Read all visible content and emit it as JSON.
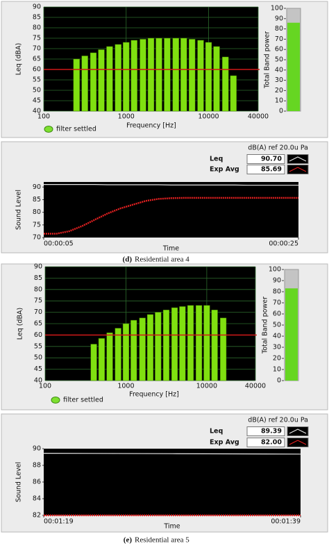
{
  "chart_data": [
    {
      "type": "bar",
      "xlabel": "Frequency [Hz]",
      "ylabel": "Leq (dBA)",
      "status": "filter settled",
      "x": [
        250,
        315,
        400,
        500,
        630,
        800,
        1000,
        1250,
        1600,
        2000,
        2500,
        3150,
        4000,
        5000,
        6300,
        8000,
        10000,
        12500,
        16000,
        20000
      ],
      "values": [
        65,
        66.5,
        68,
        69.5,
        71,
        72,
        73,
        74,
        74.5,
        75,
        75,
        75,
        75,
        75,
        74.5,
        74,
        73,
        71,
        66,
        57
      ],
      "color": "#80e010",
      "xscale": "log",
      "xlim": [
        100,
        40000
      ],
      "xticks": [
        100,
        1000,
        10000,
        40000
      ],
      "ylim": [
        40,
        90
      ],
      "yticks": [
        40,
        45,
        50,
        55,
        60,
        65,
        70,
        75,
        80,
        85,
        90
      ],
      "grid": true,
      "reference_line": 60,
      "reference_color": "#d01818"
    },
    {
      "type": "gauge",
      "ylabel": "Total Band power",
      "value": 86,
      "color": "#66d622",
      "ylim": [
        0,
        100
      ],
      "yticks": [
        0,
        10,
        20,
        30,
        40,
        50,
        60,
        70,
        80,
        90,
        100
      ]
    },
    {
      "type": "line",
      "header": "dB(A) ref 20.0u Pa",
      "xlabel": "Time",
      "ylabel": "Sound Level",
      "x": [
        5,
        6,
        7,
        8,
        9,
        10,
        11,
        12,
        13,
        14,
        15,
        16,
        17,
        18,
        19,
        20,
        21,
        22,
        23,
        24,
        25
      ],
      "xlim": [
        5,
        25
      ],
      "xticks": [
        {
          "value": 5,
          "label": "00:00:05"
        },
        {
          "value": 25,
          "label": "00:00:25"
        }
      ],
      "ylim": [
        70,
        92
      ],
      "yticks": [
        70,
        75,
        80,
        85,
        90
      ],
      "grid": false,
      "series": [
        {
          "name": "Leq",
          "color": "#e8e8e8",
          "values": [
            91,
            91,
            91,
            91,
            91,
            90.9,
            90.9,
            90.9,
            90.9,
            90.9,
            90.8,
            90.8,
            90.8,
            90.8,
            90.8,
            90.8,
            90.7,
            90.7,
            90.7,
            90.7,
            90.7
          ]
        },
        {
          "name": "Exp Avg",
          "color": "#e02020",
          "values": [
            71.5,
            71.5,
            72.5,
            74.5,
            77,
            79.5,
            81.5,
            83,
            84.5,
            85.3,
            85.6,
            85.7,
            85.7,
            85.7,
            85.7,
            85.7,
            85.7,
            85.7,
            85.7,
            85.7,
            85.7
          ]
        }
      ],
      "readout_values": [
        90.7,
        85.69
      ],
      "readout_labels": [
        "90.70",
        "85.69"
      ]
    },
    {
      "type": "bar",
      "xlabel": "Frequency [Hz]",
      "ylabel": "Leq (dBA)",
      "status": "filter settled",
      "x": [
        400,
        500,
        630,
        800,
        1000,
        1250,
        1600,
        2000,
        2500,
        3150,
        4000,
        5000,
        6300,
        8000,
        10000,
        12500,
        16000
      ],
      "values": [
        56,
        58.5,
        61,
        63,
        65,
        66.5,
        67.5,
        69,
        70,
        71,
        72,
        72.5,
        73,
        73,
        73,
        71,
        67.5
      ],
      "color": "#80e010",
      "xscale": "log",
      "xlim": [
        100,
        40000
      ],
      "xticks": [
        100,
        1000,
        10000,
        40000
      ],
      "ylim": [
        40,
        90
      ],
      "yticks": [
        40,
        45,
        50,
        55,
        60,
        65,
        70,
        75,
        80,
        85,
        90
      ],
      "grid": true,
      "reference_line": 60,
      "reference_color": "#d01818"
    },
    {
      "type": "gauge",
      "ylabel": "Total Band power",
      "value": 83,
      "color": "#66d622",
      "ylim": [
        0,
        100
      ],
      "yticks": [
        0,
        10,
        20,
        30,
        40,
        50,
        60,
        70,
        80,
        90,
        100
      ]
    },
    {
      "type": "line",
      "header": "dB(A) ref 20.0u Pa",
      "xlabel": "Time",
      "ylabel": "Sound Level",
      "x": [
        79,
        89,
        99
      ],
      "xlim": [
        79,
        99
      ],
      "xticks": [
        {
          "value": 79,
          "label": "00:01:19"
        },
        {
          "value": 99,
          "label": "00:01:39"
        }
      ],
      "ylim": [
        82,
        90
      ],
      "yticks": [
        82,
        84,
        86,
        88,
        90
      ],
      "grid": false,
      "series": [
        {
          "name": "Leq",
          "color": "#e8e8e8",
          "values": [
            89.45,
            89.4,
            89.35
          ]
        },
        {
          "name": "Exp Avg",
          "color": "#e02020",
          "values": [
            82,
            82,
            82
          ]
        }
      ],
      "readout_values": [
        89.39,
        82
      ],
      "readout_labels": [
        "89.39",
        "82.00"
      ]
    }
  ],
  "captions": [
    {
      "letter": "(d)",
      "text": "Residential area 4"
    },
    {
      "letter": "(e)",
      "text": "Residential area 5"
    }
  ]
}
